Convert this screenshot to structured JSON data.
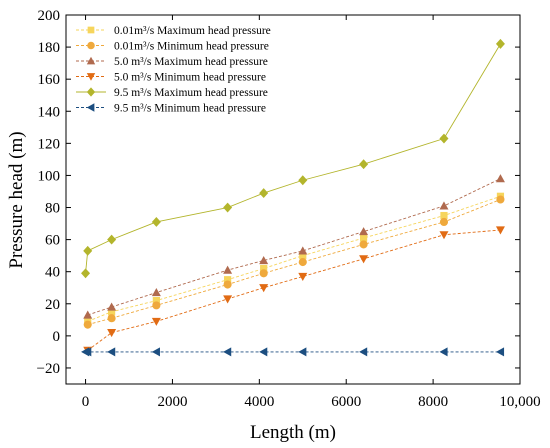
{
  "chart_data": {
    "type": "line",
    "xlabel": "Length (m)",
    "ylabel": "Pressure head (m)",
    "xlim": [
      -450,
      10000
    ],
    "ylim": [
      -30,
      200
    ],
    "xticks": [
      0,
      2000,
      4000,
      6000,
      8000,
      10000
    ],
    "xtick_labels": [
      "0",
      "2000",
      "4000",
      "6000",
      "8000",
      "10,000"
    ],
    "yticks": [
      -20,
      0,
      20,
      40,
      60,
      80,
      100,
      120,
      140,
      160,
      180,
      200
    ],
    "ytick_labels": [
      "−20",
      "0",
      "20",
      "40",
      "60",
      "80",
      "100",
      "120",
      "140",
      "160",
      "180",
      "200"
    ],
    "legend_position": "top-left",
    "grid": false,
    "series": [
      {
        "name": "0.01m³/s Maximum head pressure",
        "color": "#f6d55c",
        "marker": "square",
        "x": [
          50,
          600,
          1630,
          3270,
          4100,
          5000,
          6400,
          8250,
          9550
        ],
        "y": [
          9,
          15,
          22,
          35,
          42,
          50,
          61,
          75,
          87
        ]
      },
      {
        "name": "0.01m³/s Minimum head pressure",
        "color": "#efa93c",
        "marker": "circle",
        "x": [
          50,
          600,
          1630,
          3270,
          4100,
          5000,
          6400,
          8250,
          9550
        ],
        "y": [
          7,
          11,
          19,
          32,
          39,
          46,
          57,
          71,
          85
        ]
      },
      {
        "name": "5.0 m³/s Maximum head pressure",
        "color": "#b06a4e",
        "marker": "triangle-up",
        "x": [
          50,
          600,
          1630,
          3270,
          4100,
          5000,
          6400,
          8250,
          9550
        ],
        "y": [
          13,
          18,
          27,
          41,
          47,
          53,
          65,
          81,
          98
        ]
      },
      {
        "name": "5.0 m³/s Minimum head pressure",
        "color": "#e16b14",
        "marker": "triangle-down",
        "x": [
          50,
          600,
          1630,
          3270,
          4100,
          5000,
          6400,
          8250,
          9550
        ],
        "y": [
          -9,
          2,
          9,
          23,
          30,
          37,
          48,
          63,
          66
        ]
      },
      {
        "name": "9.5 m³/s Maximum head pressure",
        "color": "#b3b52c",
        "marker": "diamond",
        "x": [
          0,
          50,
          600,
          1630,
          3270,
          4100,
          5000,
          6400,
          8250,
          9550
        ],
        "y": [
          39,
          53,
          60,
          71,
          80,
          89,
          97,
          107,
          123,
          182
        ]
      },
      {
        "name": "9.5 m³/s Minimum head pressure",
        "color": "#1c4e80",
        "marker": "triangle-left",
        "x": [
          0,
          50,
          600,
          1630,
          3270,
          4100,
          5000,
          6400,
          8250,
          9550
        ],
        "y": [
          -10,
          -10,
          -10,
          -10,
          -10,
          -10,
          -10,
          -10,
          -10,
          -10
        ]
      }
    ]
  }
}
